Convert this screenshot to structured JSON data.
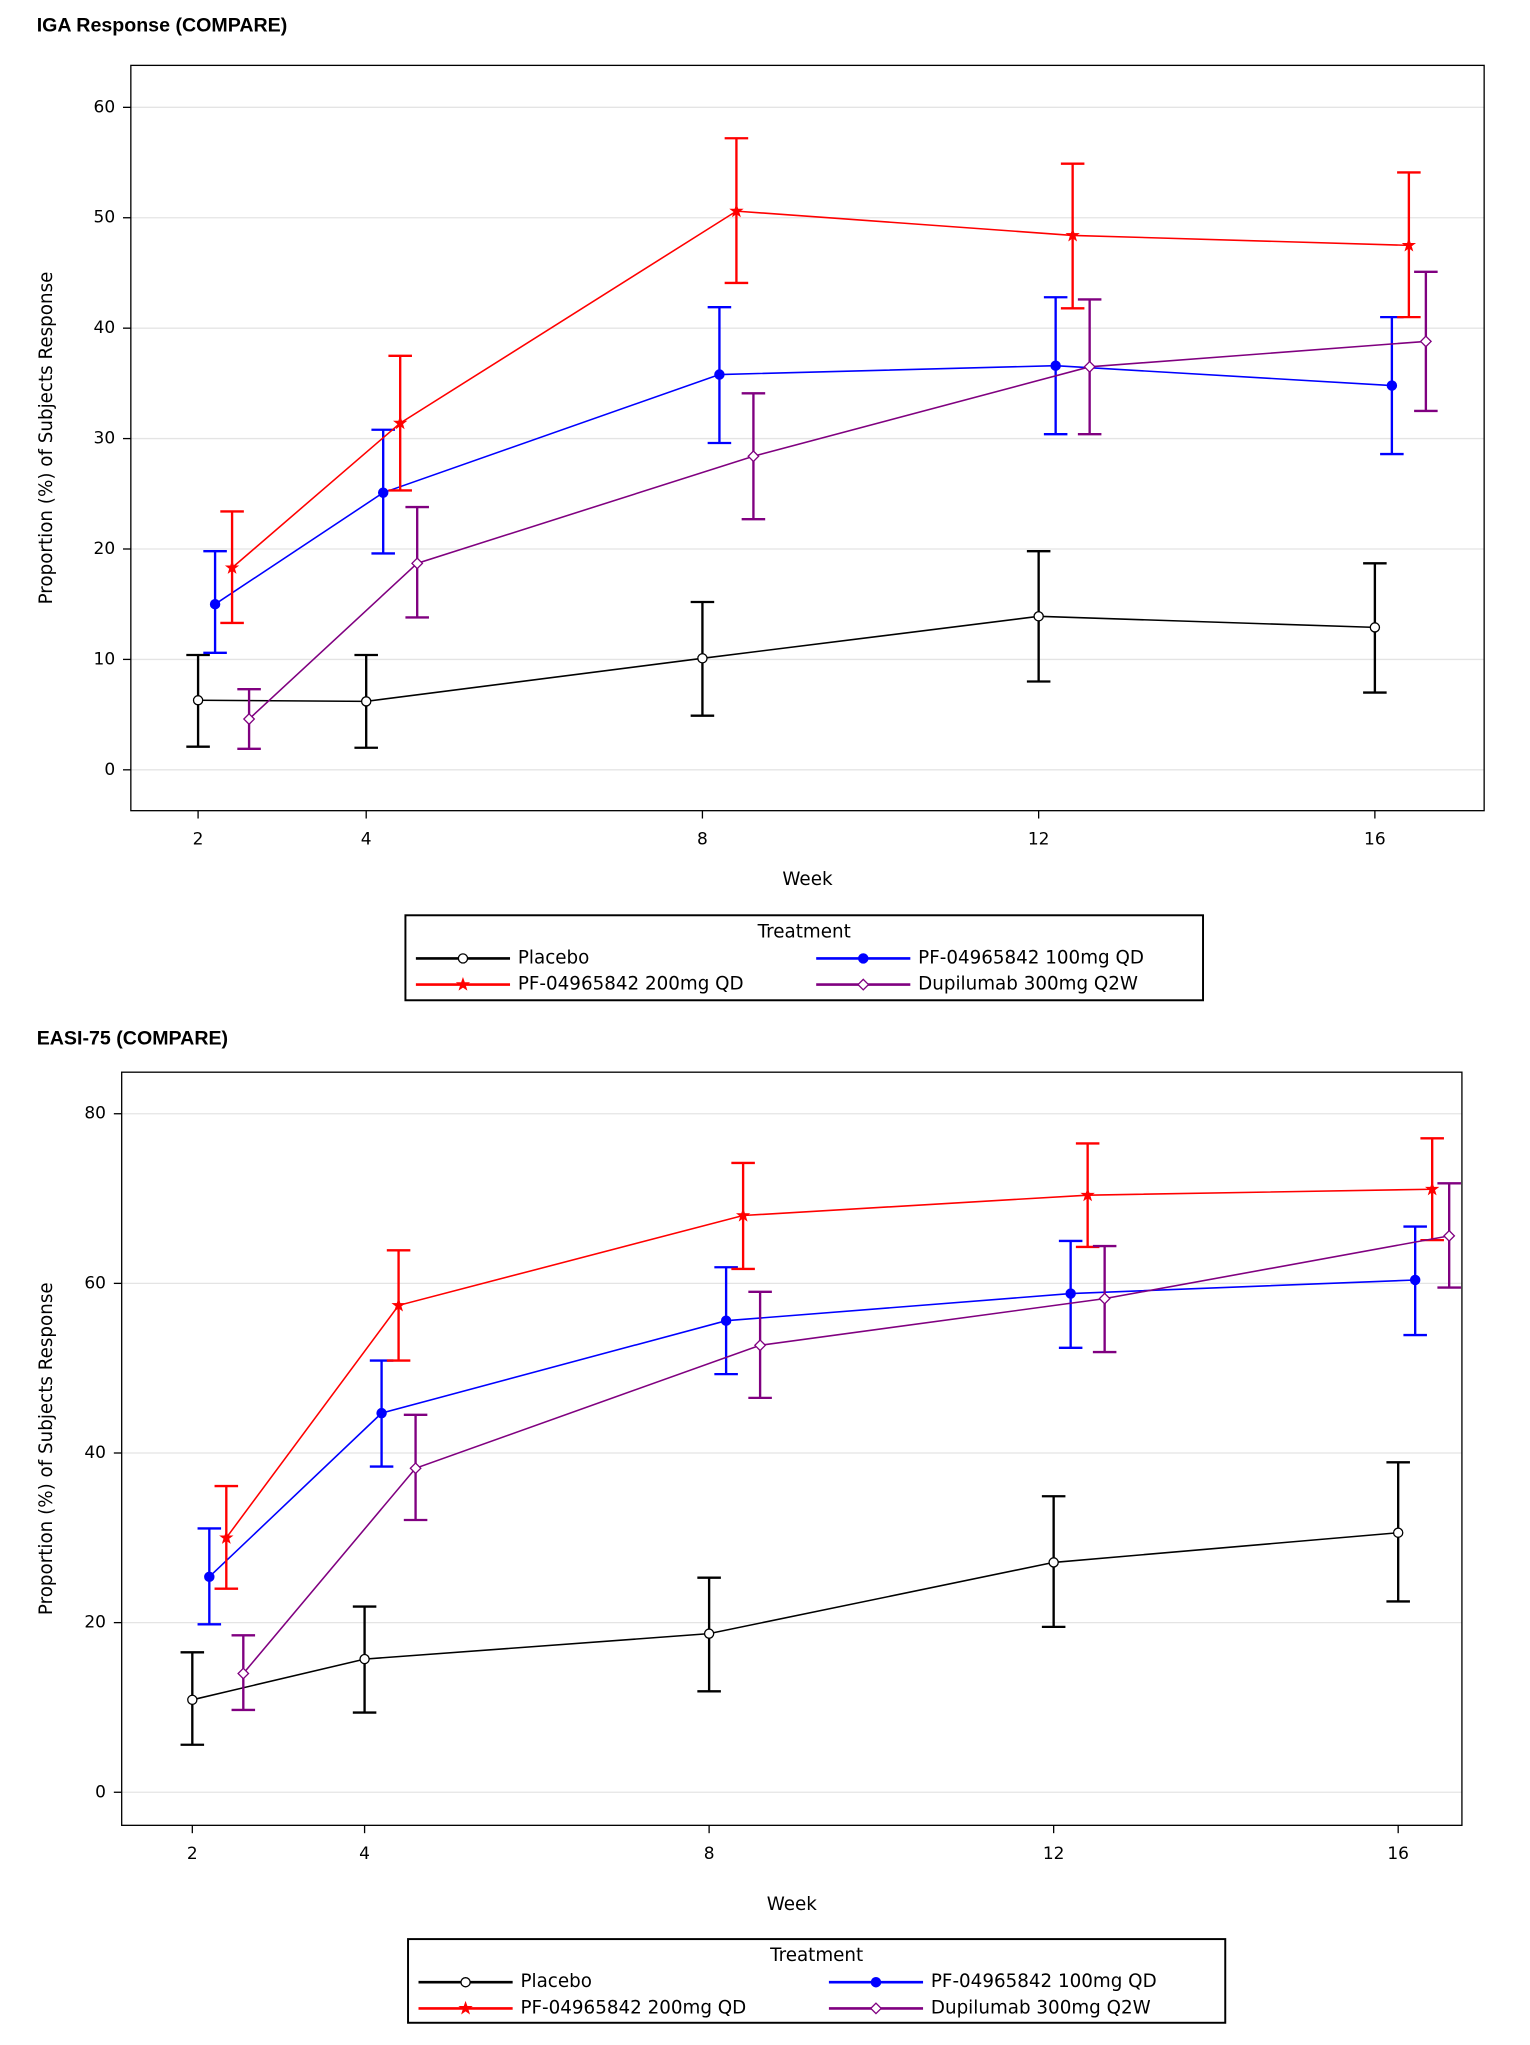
{
  "chart_data": [
    {
      "type": "line",
      "title": "IGA Response (COMPARE)",
      "x_label": "Week",
      "y_label": "Proportion (%) of Subjects Response",
      "legend_title": "Treatment",
      "legend": "bottom",
      "grid": true,
      "x": [
        2,
        4,
        8,
        12,
        16
      ],
      "xlim": [
        1.2,
        17.3
      ],
      "xticks": [
        2,
        4,
        8,
        12,
        16
      ],
      "ylim": [
        -3.7,
        63.8
      ],
      "yticks": [
        0,
        10,
        20,
        30,
        40,
        50,
        60
      ],
      "series": [
        {
          "name": "Placebo",
          "color": "#000000",
          "marker": "circle-open",
          "values": [
            6.3,
            6.2,
            10.1,
            13.9,
            12.9
          ],
          "lower": [
            2.1,
            2.0,
            4.9,
            8.0,
            7.0
          ],
          "upper": [
            10.4,
            10.4,
            15.2,
            19.8,
            18.7
          ]
        },
        {
          "name": "PF-04965842 100mg QD",
          "color": "#0000ff",
          "marker": "circle",
          "values": [
            15.0,
            25.1,
            35.8,
            36.6,
            34.8
          ],
          "lower": [
            10.6,
            19.6,
            29.6,
            30.4,
            28.6
          ],
          "upper": [
            19.8,
            30.8,
            41.9,
            42.8,
            41.0
          ]
        },
        {
          "name": "PF-04965842 200mg QD",
          "color": "#ff0000",
          "marker": "star",
          "values": [
            18.3,
            31.4,
            50.6,
            48.4,
            47.5
          ],
          "lower": [
            13.3,
            25.3,
            44.1,
            41.8,
            41.0
          ],
          "upper": [
            23.4,
            37.5,
            57.2,
            54.9,
            54.1
          ]
        },
        {
          "name": "Dupilumab 300mg Q2W",
          "color": "#800080",
          "marker": "diamond-open",
          "values": [
            4.6,
            18.7,
            28.4,
            36.5,
            38.8
          ],
          "lower": [
            1.9,
            13.8,
            22.7,
            30.4,
            32.5
          ],
          "upper": [
            7.3,
            23.8,
            34.1,
            42.6,
            45.1
          ]
        }
      ]
    },
    {
      "type": "line",
      "title": "EASI-75 (COMPARE)",
      "x_label": "Week",
      "y_label": "Proportion (%) of Subjects Response",
      "legend_title": "Treatment",
      "legend": "bottom",
      "grid": true,
      "x": [
        2,
        4,
        8,
        12,
        16
      ],
      "xlim": [
        1.18,
        16.74
      ],
      "xticks": [
        2,
        4,
        8,
        12,
        16
      ],
      "ylim": [
        -3.9,
        84.9
      ],
      "yticks": [
        0,
        20,
        40,
        60,
        80
      ],
      "series": [
        {
          "name": "Placebo",
          "color": "#000000",
          "marker": "circle-open",
          "values": [
            10.9,
            15.7,
            18.7,
            27.1,
            30.6
          ],
          "lower": [
            5.6,
            9.4,
            11.9,
            19.5,
            22.5
          ],
          "upper": [
            16.5,
            21.9,
            25.3,
            34.9,
            38.9
          ]
        },
        {
          "name": "PF-04965842 100mg QD",
          "color": "#0000ff",
          "marker": "circle",
          "values": [
            25.4,
            44.7,
            55.6,
            58.8,
            60.4
          ],
          "lower": [
            19.8,
            38.4,
            49.3,
            52.4,
            53.9
          ],
          "upper": [
            31.1,
            50.9,
            61.9,
            65.0,
            66.7
          ]
        },
        {
          "name": "PF-04965842 200mg QD",
          "color": "#ff0000",
          "marker": "star",
          "values": [
            30.0,
            57.4,
            68.0,
            70.4,
            71.1
          ],
          "lower": [
            24.0,
            50.9,
            61.7,
            64.3,
            65.1
          ],
          "upper": [
            36.1,
            63.9,
            74.2,
            76.5,
            77.1
          ]
        },
        {
          "name": "Dupilumab 300mg Q2W",
          "color": "#800080",
          "marker": "diamond-open",
          "values": [
            14.0,
            38.2,
            52.7,
            58.2,
            65.6
          ],
          "lower": [
            9.7,
            32.1,
            46.5,
            51.9,
            59.5
          ],
          "upper": [
            18.5,
            44.5,
            59.0,
            64.4,
            71.8
          ]
        }
      ]
    }
  ]
}
